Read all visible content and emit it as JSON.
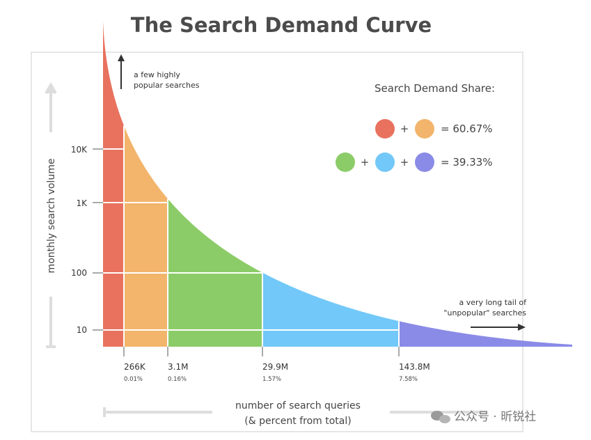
{
  "chart_data": {
    "type": "area",
    "title": "The Search Demand Curve",
    "ylabel": "monthly search volume",
    "xlabel_line1": "number of search queries",
    "xlabel_line2": "(& percent from total)",
    "yscale": "log",
    "y_ticks": [
      {
        "value": 10,
        "label": "10"
      },
      {
        "value": 100,
        "label": "100"
      },
      {
        "value": 1000,
        "label": "1K"
      },
      {
        "value": 10000,
        "label": "10K"
      }
    ],
    "x_ticks": [
      {
        "label": "266K",
        "pct": "0.01%"
      },
      {
        "label": "3.1M",
        "pct": "0.16%"
      },
      {
        "label": "29.9M",
        "pct": "1.57%"
      },
      {
        "label": "143.8M",
        "pct": "7.58%"
      }
    ],
    "segments": [
      {
        "color": "#e8725e"
      },
      {
        "color": "#f2b56b"
      },
      {
        "color": "#8ccc68"
      },
      {
        "color": "#72c8f8"
      },
      {
        "color": "#8a8be6"
      }
    ],
    "annotations": {
      "top_line1": "a few highly",
      "top_line2": "popular searches",
      "tail_line1": "a very long tail of",
      "tail_line2": "\"unpopular\" searches"
    },
    "legend": {
      "title": "Search Demand Share:",
      "row1_value": "= 60.67%",
      "row2_value": "= 39.33%",
      "plus": "+"
    },
    "grid": true
  },
  "watermark": "公众号 · 昕锐社"
}
